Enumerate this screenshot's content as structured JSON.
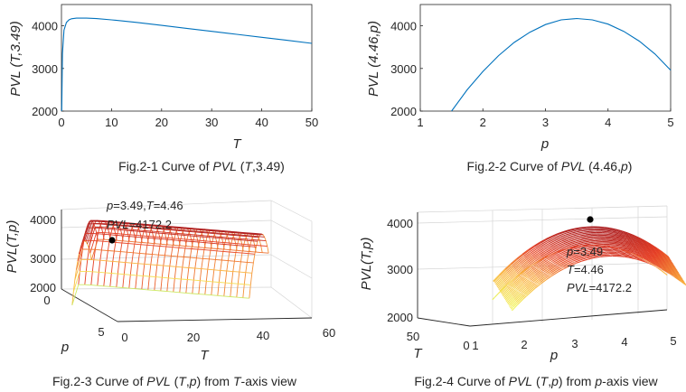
{
  "chart_data": [
    {
      "type": "line",
      "id": "fig2-1",
      "caption_parts": [
        "Fig.2-1 Curve of ",
        "PVL",
        " (",
        "T",
        ",3.49)"
      ],
      "xlabel": "T",
      "ylabel": "PVL (T,3.49)",
      "xlim": [
        0,
        50
      ],
      "ylim": [
        2000,
        4500
      ],
      "xticks": [
        "0",
        "10",
        "20",
        "30",
        "40",
        "50"
      ],
      "yticks": [
        "2000",
        "3000",
        "4000"
      ],
      "series": [
        {
          "name": "PVL(T,3.49)",
          "color": "#0072bd",
          "x": [
            0.05,
            0.2,
            0.5,
            1,
            1.5,
            2,
            3,
            4,
            5,
            7,
            10,
            15,
            20,
            25,
            30,
            35,
            40,
            45,
            50
          ],
          "y": [
            2000,
            3350,
            3900,
            4080,
            4140,
            4165,
            4180,
            4182,
            4180,
            4170,
            4140,
            4080,
            4010,
            3940,
            3870,
            3800,
            3730,
            3660,
            3590
          ]
        }
      ]
    },
    {
      "type": "line",
      "id": "fig2-2",
      "caption_parts": [
        "Fig.2-2 Curve of ",
        "PVL",
        " (4.46,",
        "p",
        ")"
      ],
      "xlabel": "p",
      "ylabel": "PVL (4.46,p)",
      "xlim": [
        1,
        5
      ],
      "ylim": [
        2000,
        4500
      ],
      "xticks": [
        "1",
        "2",
        "3",
        "4",
        "5"
      ],
      "yticks": [
        "2000",
        "3000",
        "4000"
      ],
      "series": [
        {
          "name": "PVL(4.46,p)",
          "color": "#0072bd",
          "x": [
            1.5,
            1.75,
            2.0,
            2.25,
            2.5,
            2.75,
            3.0,
            3.25,
            3.5,
            3.75,
            4.0,
            4.25,
            4.5,
            4.75,
            5.0
          ],
          "y": [
            2000,
            2500,
            2930,
            3300,
            3610,
            3850,
            4030,
            4140,
            4172,
            4140,
            4040,
            3870,
            3640,
            3340,
            2960
          ]
        }
      ]
    },
    {
      "type": "surface",
      "id": "fig2-3",
      "caption_parts": [
        "Fig.2-3 Curve of ",
        "PVL",
        " (",
        "T",
        ",",
        "p",
        ") from ",
        "T",
        "-axis view"
      ],
      "xlabel": "T",
      "ylabel": "p",
      "zlabel": "PVL(T,p)",
      "xlim": [
        0,
        60
      ],
      "ylim": [
        0,
        5
      ],
      "zlim": [
        2000,
        4500
      ],
      "xticks": [
        "0",
        "20",
        "40",
        "60"
      ],
      "yticks": [
        "0",
        "5"
      ],
      "zticks": [
        "2000",
        "3000",
        "4000"
      ],
      "optimum": {
        "p": 3.49,
        "T": 4.46,
        "PVL": 4172.2
      },
      "annotation_lines": [
        [
          "p",
          "=3.49,",
          "T",
          "=4.46"
        ],
        [
          "PVL",
          "=4172.2"
        ]
      ]
    },
    {
      "type": "surface",
      "id": "fig2-4",
      "caption_parts": [
        "Fig.2-4 Curve of ",
        "PVL",
        " (",
        "T",
        ",",
        "p",
        ") from ",
        "p",
        "-axis view"
      ],
      "xlabel": "p",
      "ylabel": "T",
      "zlabel": "PVL(T,p)",
      "xlim": [
        0,
        5
      ],
      "ylim": [
        0,
        50
      ],
      "zlim": [
        2000,
        4500
      ],
      "xticks": [
        "0",
        "1",
        "2",
        "3",
        "4",
        "5"
      ],
      "yticks": [
        "50"
      ],
      "zticks": [
        "2000",
        "3000",
        "4000"
      ],
      "optimum": {
        "p": 3.49,
        "T": 4.46,
        "PVL": 4172.2
      },
      "annotation_lines": [
        [
          "p",
          "=3.49"
        ],
        [
          "T",
          "=4.46"
        ],
        [
          "PVL",
          "=4172.2"
        ]
      ]
    }
  ],
  "colors": {
    "line": "#0072bd",
    "axis": "#262626",
    "grid": "#d9d9d9",
    "marker": "#000000"
  }
}
